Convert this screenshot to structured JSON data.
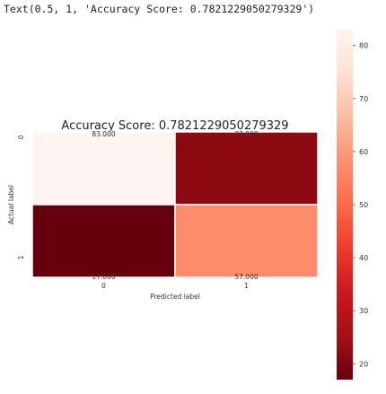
{
  "output": {
    "repr_text": "Text(0.5, 1, 'Accuracy Score: 0.7821229050279329')"
  },
  "colors": {
    "colormap": "Reds_r",
    "stops": [
      "#67000d",
      "#a50f15",
      "#cb181d",
      "#ef3b2c",
      "#fb6a4a",
      "#fc9272",
      "#fcbba1",
      "#fee0d2",
      "#fff5f0"
    ],
    "cell_border": "#ffffff",
    "text": "#333333"
  },
  "chart_data": {
    "type": "heatmap",
    "title": "Accuracy Score: 0.7821229050279329",
    "xlabel": "Predicted label",
    "ylabel": "Actual label",
    "x_tick_labels": [
      "0",
      "1"
    ],
    "y_tick_labels": [
      "0",
      "1"
    ],
    "matrix": [
      [
        83,
        22
      ],
      [
        17,
        57
      ]
    ],
    "annotations": [
      [
        "83.000",
        "22.000"
      ],
      [
        "17.000",
        "57.000"
      ]
    ],
    "colorbar": {
      "range": [
        17,
        83
      ],
      "ticks": [
        20,
        30,
        40,
        50,
        60,
        70,
        80
      ],
      "tick_labels": [
        "20",
        "30",
        "40",
        "50",
        "60",
        "70",
        "80"
      ]
    }
  }
}
